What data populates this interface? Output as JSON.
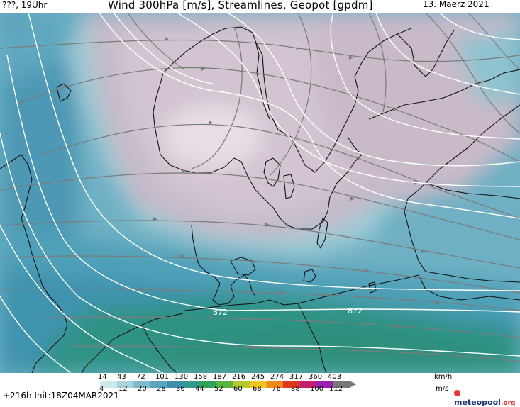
{
  "header": {
    "left": "???, 19Uhr",
    "title": "Wind 300hPa [m/s], Streamlines, Geopot [gpdm]",
    "date": "13. Maerz 2021"
  },
  "map": {
    "contour_label_1": "872",
    "contour_label_2": "872"
  },
  "legend": {
    "kmh_values": [
      "14",
      "43",
      "72",
      "101",
      "130",
      "158",
      "187",
      "216",
      "245",
      "274",
      "317",
      "360",
      "403"
    ],
    "kmh_unit": "km/h",
    "ms_values": [
      "4",
      "12",
      "20",
      "28",
      "36",
      "44",
      "52",
      "60",
      "68",
      "76",
      "88",
      "100",
      "112"
    ],
    "ms_unit": "m/s",
    "colors": [
      "#ffffff",
      "#cfe8ea",
      "#a8d3db",
      "#7fbccb",
      "#5aa6bf",
      "#3f8fae",
      "#2f9a89",
      "#2fa35a",
      "#5ab33c",
      "#b3c92d",
      "#f2c618",
      "#f08a1c",
      "#e0381b",
      "#c41e73",
      "#9b1fae",
      "#777777"
    ]
  },
  "footer": {
    "run": "+216h  Init:18Z04MAR2021",
    "brand_main": "meteopool",
    "brand_tld": ".org"
  }
}
